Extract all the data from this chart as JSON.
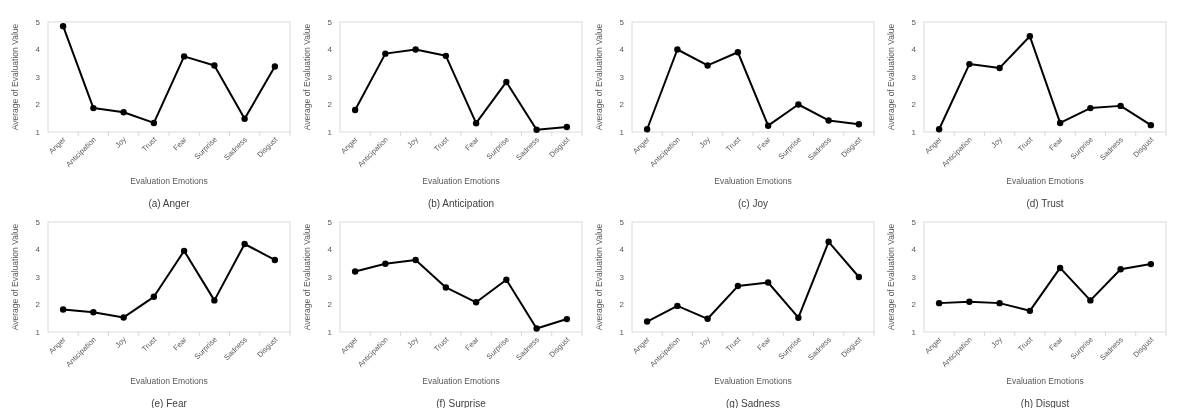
{
  "chart_data": [
    {
      "type": "line",
      "title": "(a) Anger",
      "xlabel": "Evaluation Emotions",
      "ylabel": "Average of Evaluation Value",
      "categories": [
        "Anger",
        "Anticipation",
        "Joy",
        "Trust",
        "Fear",
        "Surprise",
        "Sadness",
        "Disgust"
      ],
      "values": [
        4.85,
        1.87,
        1.72,
        1.33,
        3.75,
        3.42,
        1.48,
        3.38
      ],
      "color": "#000000",
      "marker": "circle",
      "ylim": [
        1,
        5
      ],
      "yticks": [
        1,
        2,
        3,
        4,
        5
      ]
    },
    {
      "type": "line",
      "title": "(b) Anticipation",
      "xlabel": "Evaluation Emotions",
      "ylabel": "Average of Evaluation Value",
      "categories": [
        "Anger",
        "Anticipation",
        "Joy",
        "Trust",
        "Fear",
        "Surprise",
        "Sadness",
        "Disgust"
      ],
      "values": [
        1.8,
        3.85,
        4.0,
        3.77,
        1.32,
        2.82,
        1.08,
        1.18
      ],
      "color": "#000000",
      "marker": "circle",
      "ylim": [
        1,
        5
      ],
      "yticks": [
        1,
        2,
        3,
        4,
        5
      ]
    },
    {
      "type": "line",
      "title": "(c) Joy",
      "xlabel": "Evaluation Emotions",
      "ylabel": "Average of Evaluation Value",
      "categories": [
        "Anger",
        "Anticipation",
        "Joy",
        "Trust",
        "Fear",
        "Surprise",
        "Sadness",
        "Disgust"
      ],
      "values": [
        1.1,
        4.0,
        3.42,
        3.9,
        1.23,
        2.0,
        1.42,
        1.28
      ],
      "color": "#000000",
      "marker": "circle",
      "ylim": [
        1,
        5
      ],
      "yticks": [
        1,
        2,
        3,
        4,
        5
      ]
    },
    {
      "type": "line",
      "title": "(d) Trust",
      "xlabel": "Evaluation Emotions",
      "ylabel": "Average of Evaluation Value",
      "categories": [
        "Anger",
        "Anticipation",
        "Joy",
        "Trust",
        "Fear",
        "Surprise",
        "Sadness",
        "Disgust"
      ],
      "values": [
        1.1,
        3.47,
        3.33,
        4.48,
        1.33,
        1.87,
        1.95,
        1.25
      ],
      "color": "#000000",
      "marker": "circle",
      "ylim": [
        1,
        5
      ],
      "yticks": [
        1,
        2,
        3,
        4,
        5
      ]
    },
    {
      "type": "line",
      "title": "(e) Fear",
      "xlabel": "Evaluation Emotions",
      "ylabel": "Average of Evaluation Value",
      "categories": [
        "Anger",
        "Anticipation",
        "Joy",
        "Trust",
        "Fear",
        "Surprise",
        "Sadness",
        "Disgust"
      ],
      "values": [
        1.82,
        1.72,
        1.53,
        2.28,
        3.95,
        2.15,
        4.2,
        3.62
      ],
      "color": "#000000",
      "marker": "circle",
      "ylim": [
        1,
        5
      ],
      "yticks": [
        1,
        2,
        3,
        4,
        5
      ]
    },
    {
      "type": "line",
      "title": "(f) Surprise",
      "xlabel": "Evaluation Emotions",
      "ylabel": "Average of Evaluation Value",
      "categories": [
        "Anger",
        "Anticipation",
        "Joy",
        "Trust",
        "Fear",
        "Surprise",
        "Sadness",
        "Disgust"
      ],
      "values": [
        3.2,
        3.48,
        3.62,
        2.62,
        2.08,
        2.9,
        1.13,
        1.47
      ],
      "color": "#000000",
      "marker": "circle",
      "ylim": [
        1,
        5
      ],
      "yticks": [
        1,
        2,
        3,
        4,
        5
      ]
    },
    {
      "type": "line",
      "title": "(g) Sadness",
      "xlabel": "Evaluation Emotions",
      "ylabel": "Average of Evaluation Value",
      "categories": [
        "Anger",
        "Anticipation",
        "Joy",
        "Trust",
        "Fear",
        "Surprise",
        "Sadness",
        "Disgust"
      ],
      "values": [
        1.38,
        1.95,
        1.48,
        2.67,
        2.8,
        1.52,
        4.28,
        3.0
      ],
      "color": "#000000",
      "marker": "circle",
      "ylim": [
        1,
        5
      ],
      "yticks": [
        1,
        2,
        3,
        4,
        5
      ]
    },
    {
      "type": "line",
      "title": "(h) Disgust",
      "xlabel": "Evaluation Emotions",
      "ylabel": "Average of Evaluation Value",
      "categories": [
        "Anger",
        "Anticipation",
        "Joy",
        "Trust",
        "Fear",
        "Surprise",
        "Sadness",
        "Disgust"
      ],
      "values": [
        2.05,
        2.1,
        2.05,
        1.77,
        3.33,
        2.15,
        3.28,
        3.47
      ],
      "color": "#000000",
      "marker": "circle",
      "ylim": [
        1,
        5
      ],
      "yticks": [
        1,
        2,
        3,
        4,
        5
      ]
    }
  ]
}
